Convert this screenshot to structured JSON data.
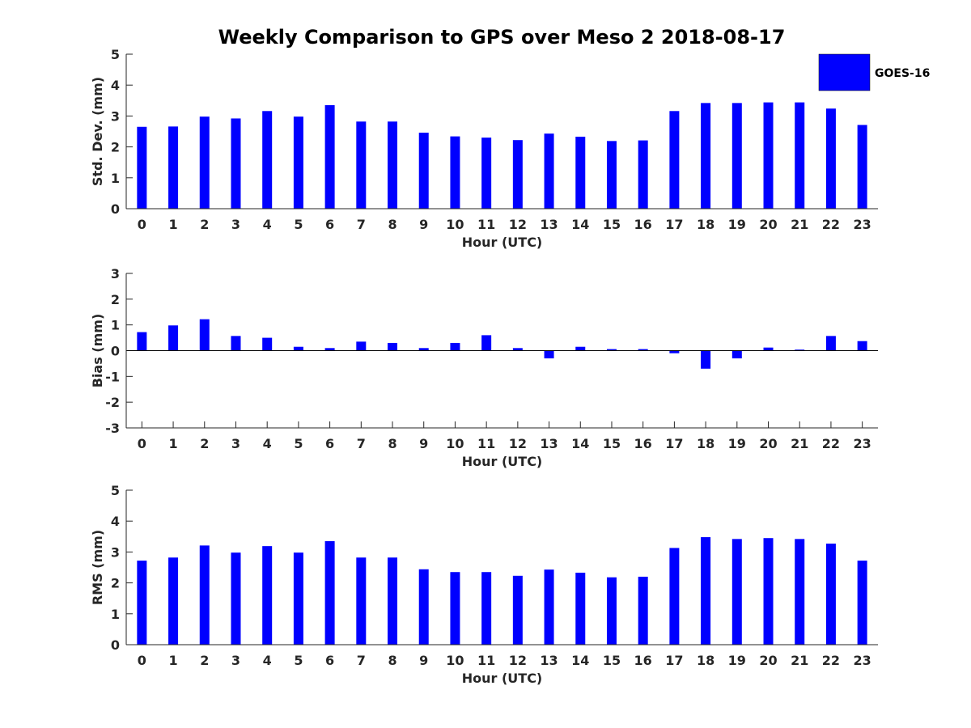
{
  "figure": {
    "title": "Weekly Comparison to GPS over Meso 2 2018-08-17",
    "bar_color": "#0000ff",
    "legend": {
      "label": "GOES-16",
      "placement": "top-right outside"
    }
  },
  "chart_data": [
    {
      "type": "bar",
      "title": "Weekly Comparison to GPS over Meso 2 2018-08-17",
      "xlabel": "Hour (UTC)",
      "ylabel": "Std. Dev. (mm)",
      "ylim": [
        0,
        5
      ],
      "yticks": [
        0,
        1,
        2,
        3,
        4,
        5
      ],
      "categories": [
        "0",
        "1",
        "2",
        "3",
        "4",
        "5",
        "6",
        "7",
        "8",
        "9",
        "10",
        "11",
        "12",
        "13",
        "14",
        "15",
        "16",
        "17",
        "18",
        "19",
        "20",
        "21",
        "22",
        "23"
      ],
      "series": [
        {
          "name": "GOES-16",
          "values": [
            2.65,
            2.66,
            2.98,
            2.92,
            3.16,
            2.98,
            3.35,
            2.82,
            2.82,
            2.46,
            2.34,
            2.3,
            2.22,
            2.43,
            2.33,
            2.19,
            2.21,
            3.16,
            3.42,
            3.42,
            3.44,
            3.44,
            3.24,
            2.71
          ]
        }
      ]
    },
    {
      "type": "bar",
      "title": "",
      "xlabel": "Hour (UTC)",
      "ylabel": "Bias (mm)",
      "ylim": [
        -3,
        3
      ],
      "yticks": [
        -3,
        -2,
        -1,
        0,
        1,
        2,
        3
      ],
      "categories": [
        "0",
        "1",
        "2",
        "3",
        "4",
        "5",
        "6",
        "7",
        "8",
        "9",
        "10",
        "11",
        "12",
        "13",
        "14",
        "15",
        "16",
        "17",
        "18",
        "19",
        "20",
        "21",
        "22",
        "23"
      ],
      "series": [
        {
          "name": "GOES-16",
          "values": [
            0.72,
            0.98,
            1.22,
            0.57,
            0.5,
            0.15,
            0.1,
            0.35,
            0.3,
            0.1,
            0.3,
            0.6,
            0.1,
            -0.3,
            0.15,
            0.06,
            0.06,
            -0.1,
            -0.7,
            -0.3,
            0.12,
            0.04,
            0.57,
            0.37
          ]
        }
      ]
    },
    {
      "type": "bar",
      "title": "",
      "xlabel": "Hour (UTC)",
      "ylabel": "RMS (mm)",
      "ylim": [
        0,
        5
      ],
      "yticks": [
        0,
        1,
        2,
        3,
        4,
        5
      ],
      "categories": [
        "0",
        "1",
        "2",
        "3",
        "4",
        "5",
        "6",
        "7",
        "8",
        "9",
        "10",
        "11",
        "12",
        "13",
        "14",
        "15",
        "16",
        "17",
        "18",
        "19",
        "20",
        "21",
        "22",
        "23"
      ],
      "series": [
        {
          "name": "GOES-16",
          "values": [
            2.72,
            2.82,
            3.21,
            2.98,
            3.19,
            2.98,
            3.35,
            2.82,
            2.82,
            2.44,
            2.35,
            2.35,
            2.23,
            2.43,
            2.33,
            2.18,
            2.2,
            3.13,
            3.48,
            3.42,
            3.45,
            3.42,
            3.27,
            2.72
          ]
        }
      ]
    }
  ]
}
